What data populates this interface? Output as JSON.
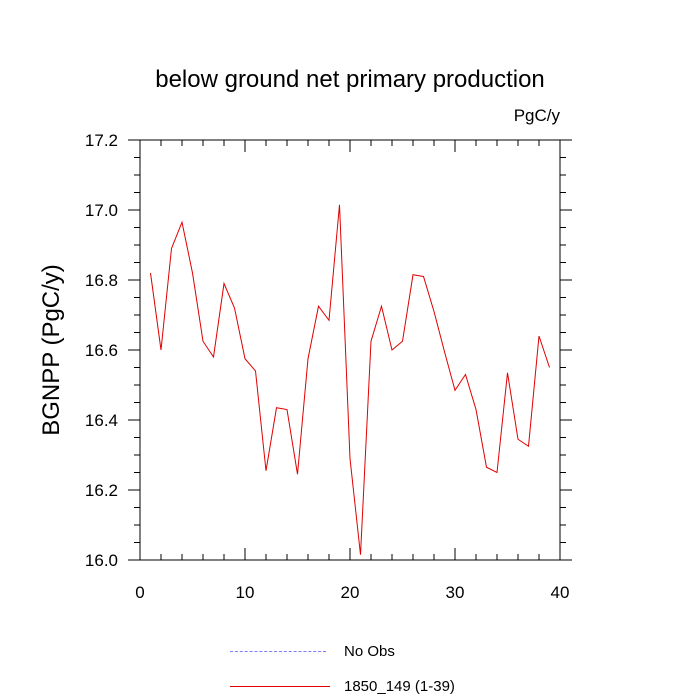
{
  "chart_data": {
    "type": "line",
    "title": "below ground net primary production",
    "units": "PgC/y",
    "ylabel": "BGNPP  (PgC/y)",
    "xlabel": "",
    "xlim": [
      0,
      40
    ],
    "ylim": [
      16.0,
      17.2
    ],
    "xticks": [
      0,
      10,
      20,
      30,
      40
    ],
    "xtick_labels": [
      "0",
      "10",
      "20",
      "30",
      "40"
    ],
    "yticks": [
      16.0,
      16.2,
      16.4,
      16.6,
      16.8,
      17.0,
      17.2
    ],
    "ytick_labels": [
      "16.0",
      "16.2",
      "16.4",
      "16.6",
      "16.8",
      "17.0",
      "17.2"
    ],
    "series": [
      {
        "name": "1850_149 (1-39)",
        "color": "#e00000",
        "style": "solid",
        "x": [
          1,
          2,
          3,
          4,
          5,
          6,
          7,
          8,
          9,
          10,
          11,
          12,
          13,
          14,
          15,
          16,
          17,
          18,
          19,
          20,
          21,
          22,
          23,
          24,
          25,
          26,
          27,
          28,
          29,
          30,
          31,
          32,
          33,
          34,
          35,
          36,
          37,
          38,
          39
        ],
        "values": [
          16.82,
          16.6,
          16.89,
          16.965,
          16.82,
          16.625,
          16.58,
          16.79,
          16.72,
          16.575,
          16.54,
          16.255,
          16.435,
          16.43,
          16.245,
          16.575,
          16.725,
          16.685,
          17.015,
          16.29,
          16.015,
          16.625,
          16.725,
          16.6,
          16.625,
          16.815,
          16.81,
          16.71,
          16.595,
          16.485,
          16.53,
          16.43,
          16.265,
          16.25,
          16.535,
          16.345,
          16.325,
          16.64,
          16.55
        ]
      },
      {
        "name": "No Obs",
        "color": "#7b7bff",
        "style": "dashed",
        "x": [],
        "values": []
      }
    ],
    "legend": {
      "position": "bottom-center",
      "entries": [
        "No Obs",
        "1850_149 (1-39)"
      ]
    }
  }
}
